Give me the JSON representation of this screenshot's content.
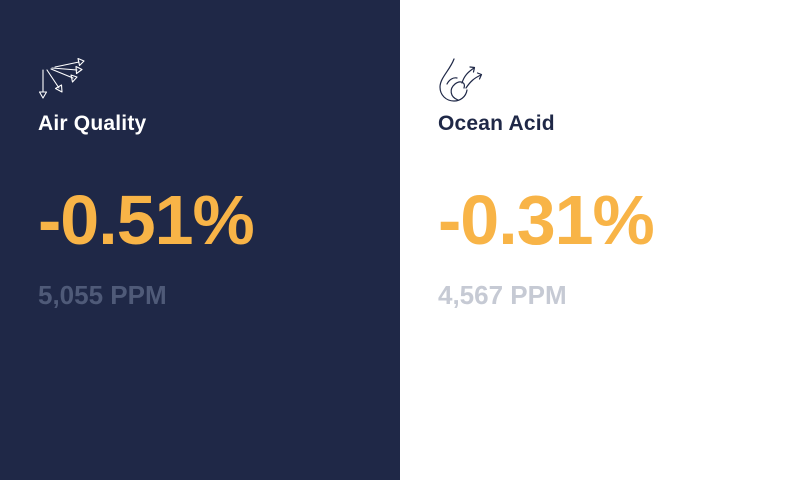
{
  "cards": [
    {
      "icon": "wind-arrows-icon",
      "title": "Air Quality",
      "change": "-0.51%",
      "ppm": "5,055 PPM"
    },
    {
      "icon": "water-drop-arrows-icon",
      "title": "Ocean Acid",
      "change": "-0.31%",
      "ppm": "4,567 PPM"
    }
  ],
  "colors": {
    "dark_background": "#1f2847",
    "light_background": "#ffffff",
    "accent": "#f8b447",
    "muted_dark": "#4f5a78",
    "muted_light": "#c6cad4"
  }
}
